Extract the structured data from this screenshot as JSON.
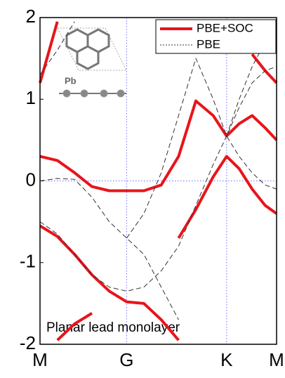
{
  "chart_data": {
    "type": "band",
    "annotation": "Planar lead monolayer",
    "inset_label": "Pb",
    "x": [
      0,
      0.2,
      0.4,
      0.6,
      0.8,
      1,
      1.2,
      1.4,
      1.6,
      1.8,
      2.0,
      2.155,
      2.3,
      2.45,
      2.6,
      2.732
    ],
    "xlim": [
      0,
      2.732
    ],
    "xticks": [
      {
        "value": 0,
        "label": "M"
      },
      {
        "value": 1,
        "label": "G"
      },
      {
        "value": 2.155,
        "label": "K"
      },
      {
        "value": 2.732,
        "label": "M"
      }
    ],
    "ylim": [
      -2,
      2
    ],
    "yticks": [
      -2,
      -1,
      0,
      1,
      2
    ],
    "fermi_level": 0,
    "legend": "top-right",
    "series": [
      {
        "name": "PBE+SOC",
        "color": "#e8141b",
        "style": "solid",
        "bands": [
          [
            0.3,
            0.25,
            0.1,
            -0.07,
            -0.12,
            -0.12,
            -0.12,
            -0.05,
            0.3,
            0.98,
            0.8,
            0.55,
            0.7,
            0.8,
            0.65,
            0.5
          ],
          [
            -0.55,
            -0.68,
            -0.9,
            -1.15,
            -1.35,
            -1.48,
            -1.5,
            -1.7,
            -1.95,
            null,
            null,
            null,
            null,
            null,
            null,
            null
          ],
          [
            null,
            null,
            null,
            null,
            null,
            null,
            null,
            null,
            -0.7,
            -0.35,
            0.05,
            0.3,
            0.15,
            -0.1,
            -0.3,
            -0.4
          ],
          [
            1.2,
            1.95,
            null,
            null,
            null,
            null,
            null,
            null,
            null,
            null,
            null,
            null,
            null,
            null,
            null,
            null
          ],
          [
            null,
            null,
            null,
            null,
            null,
            null,
            null,
            null,
            null,
            null,
            null,
            null,
            null,
            1.55,
            1.35,
            1.2
          ],
          [
            null,
            -1.95,
            -1.75,
            -1.62,
            null,
            null,
            null,
            null,
            null,
            null,
            null,
            null,
            null,
            null,
            null,
            null
          ]
        ]
      },
      {
        "name": "PBE",
        "color": "#333333",
        "style": "dashed",
        "bands": [
          [
            0,
            0.03,
            0.02,
            -0.2,
            -0.5,
            -0.7,
            -0.9,
            -1.3,
            -1.7,
            null,
            null,
            null,
            null,
            null,
            null,
            null
          ],
          [
            -0.5,
            -0.65,
            -0.9,
            -1.15,
            -1.3,
            -1.35,
            -1.3,
            -1.1,
            -0.8,
            -0.3,
            0.2,
            0.55,
            0.9,
            1.2,
            1.35,
            1.4
          ],
          [
            null,
            null,
            null,
            null,
            null,
            -0.7,
            -0.4,
            0.1,
            0.8,
            1.5,
            1.0,
            0.55,
            0.3,
            0.1,
            -0.05,
            -0.1
          ],
          [
            1.3,
            1.6,
            1.95,
            null,
            null,
            null,
            null,
            null,
            null,
            null,
            null,
            0.55,
            1.0,
            1.4,
            1.7,
            1.85
          ]
        ]
      }
    ]
  }
}
